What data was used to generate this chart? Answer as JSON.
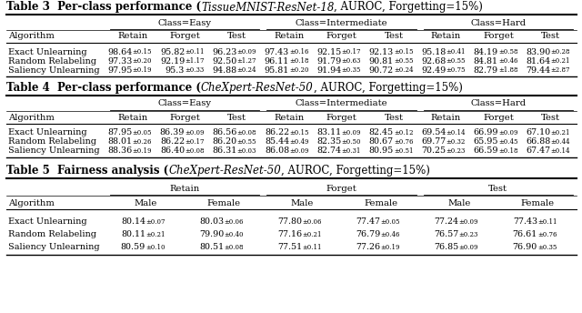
{
  "table3_title_bold": "Table 3  Per-class performance (",
  "table3_title_italic": "TissueMNIST-ResNet-18",
  "table3_title_regular": ", AUROC, Forgetting=15%)",
  "table4_title_bold": "Table 4  Per-class performance (",
  "table4_title_italic": "CheXpert-ResNet-50",
  "table4_title_regular": ", AUROC, Forgetting=15%)",
  "table5_title_bold": "Table 5  Fairness analysis (",
  "table5_title_italic": "CheXpert-ResNet-50",
  "table5_title_regular": ", AUROC, Forgetting=15%)",
  "table3_col_groups": [
    "Class=Easy",
    "Class=Intermediate",
    "Class=Hard"
  ],
  "table3_subcols": [
    "Retain",
    "Forget",
    "Test"
  ],
  "table3_algorithms": [
    "Exact Unlearning",
    "Random Relabeling",
    "Saliency Unlearning"
  ],
  "table3_data": [
    [
      "98.64",
      "0.15",
      "95.82",
      "0.11",
      "96.23",
      "0.09",
      "97.43",
      "0.16",
      "92.15",
      "0.17",
      "92.13",
      "0.15",
      "95.18",
      "0.41",
      "84.19",
      "0.58",
      "83.90",
      "0.28"
    ],
    [
      "97.33",
      "0.20",
      "92.19",
      "1.17",
      "92.50",
      "1.27",
      "96.11",
      "0.18",
      "91.79",
      "0.63",
      "90.81",
      "0.55",
      "92.68",
      "0.55",
      "84.81",
      "0.46",
      "81.64",
      "0.21"
    ],
    [
      "97.95",
      "0.19",
      "95.3",
      "0.33",
      "94.88",
      "0.24",
      "95.81",
      "0.20",
      "91.94",
      "0.35",
      "90.72",
      "0.24",
      "92.49",
      "0.75",
      "82.79",
      "1.88",
      "79.44",
      "2.87"
    ]
  ],
  "table4_col_groups": [
    "Class=Easy",
    "Class=Intermediate",
    "Class=Hard"
  ],
  "table4_subcols": [
    "Retain",
    "Forget",
    "Test"
  ],
  "table4_algorithms": [
    "Exact Unlearning",
    "Random Relabeling",
    "Saliency Unlearning"
  ],
  "table4_data": [
    [
      "87.95",
      "0.05",
      "86.39",
      "0.09",
      "86.56",
      "0.08",
      "86.22",
      "0.15",
      "83.11",
      "0.09",
      "82.45",
      "0.12",
      "69.54",
      "0.14",
      "66.99",
      "0.09",
      "67.10",
      "0.21"
    ],
    [
      "88.01",
      "0.26",
      "86.22",
      "0.17",
      "86.20",
      "0.55",
      "85.44",
      "0.49",
      "82.35",
      "0.50",
      "80.67",
      "0.76",
      "69.77",
      "0.32",
      "65.95",
      "0.45",
      "66.88",
      "0.44"
    ],
    [
      "88.36",
      "0.19",
      "86.40",
      "0.08",
      "86.31",
      "0.03",
      "86.08",
      "0.09",
      "82.74",
      "0.31",
      "80.95",
      "0.51",
      "70.25",
      "0.23",
      "66.59",
      "0.18",
      "67.47",
      "0.14"
    ]
  ],
  "table5_col_groups": [
    "Retain",
    "Forget",
    "Test"
  ],
  "table5_subcols": [
    "Male",
    "Female"
  ],
  "table5_algorithms": [
    "Exact Unlearning",
    "Random Relabeling",
    "Saliency Unlearning"
  ],
  "table5_data": [
    [
      "80.14",
      "0.07",
      "80.03",
      "0.06",
      "77.80",
      "0.06",
      "77.47",
      "0.05",
      "77.24",
      "0.09",
      "77.43",
      "0.11"
    ],
    [
      "80.11",
      "0.21",
      "79.90",
      "0.40",
      "77.16",
      "0.21",
      "76.79",
      "0.46",
      "76.57",
      "0.23",
      "76.61",
      "0.76"
    ],
    [
      "80.59",
      "0.10",
      "80.51",
      "0.08",
      "77.51",
      "0.11",
      "77.26",
      "0.19",
      "76.85",
      "0.09",
      "76.90",
      "0.35"
    ]
  ],
  "bg_color": "#ffffff"
}
